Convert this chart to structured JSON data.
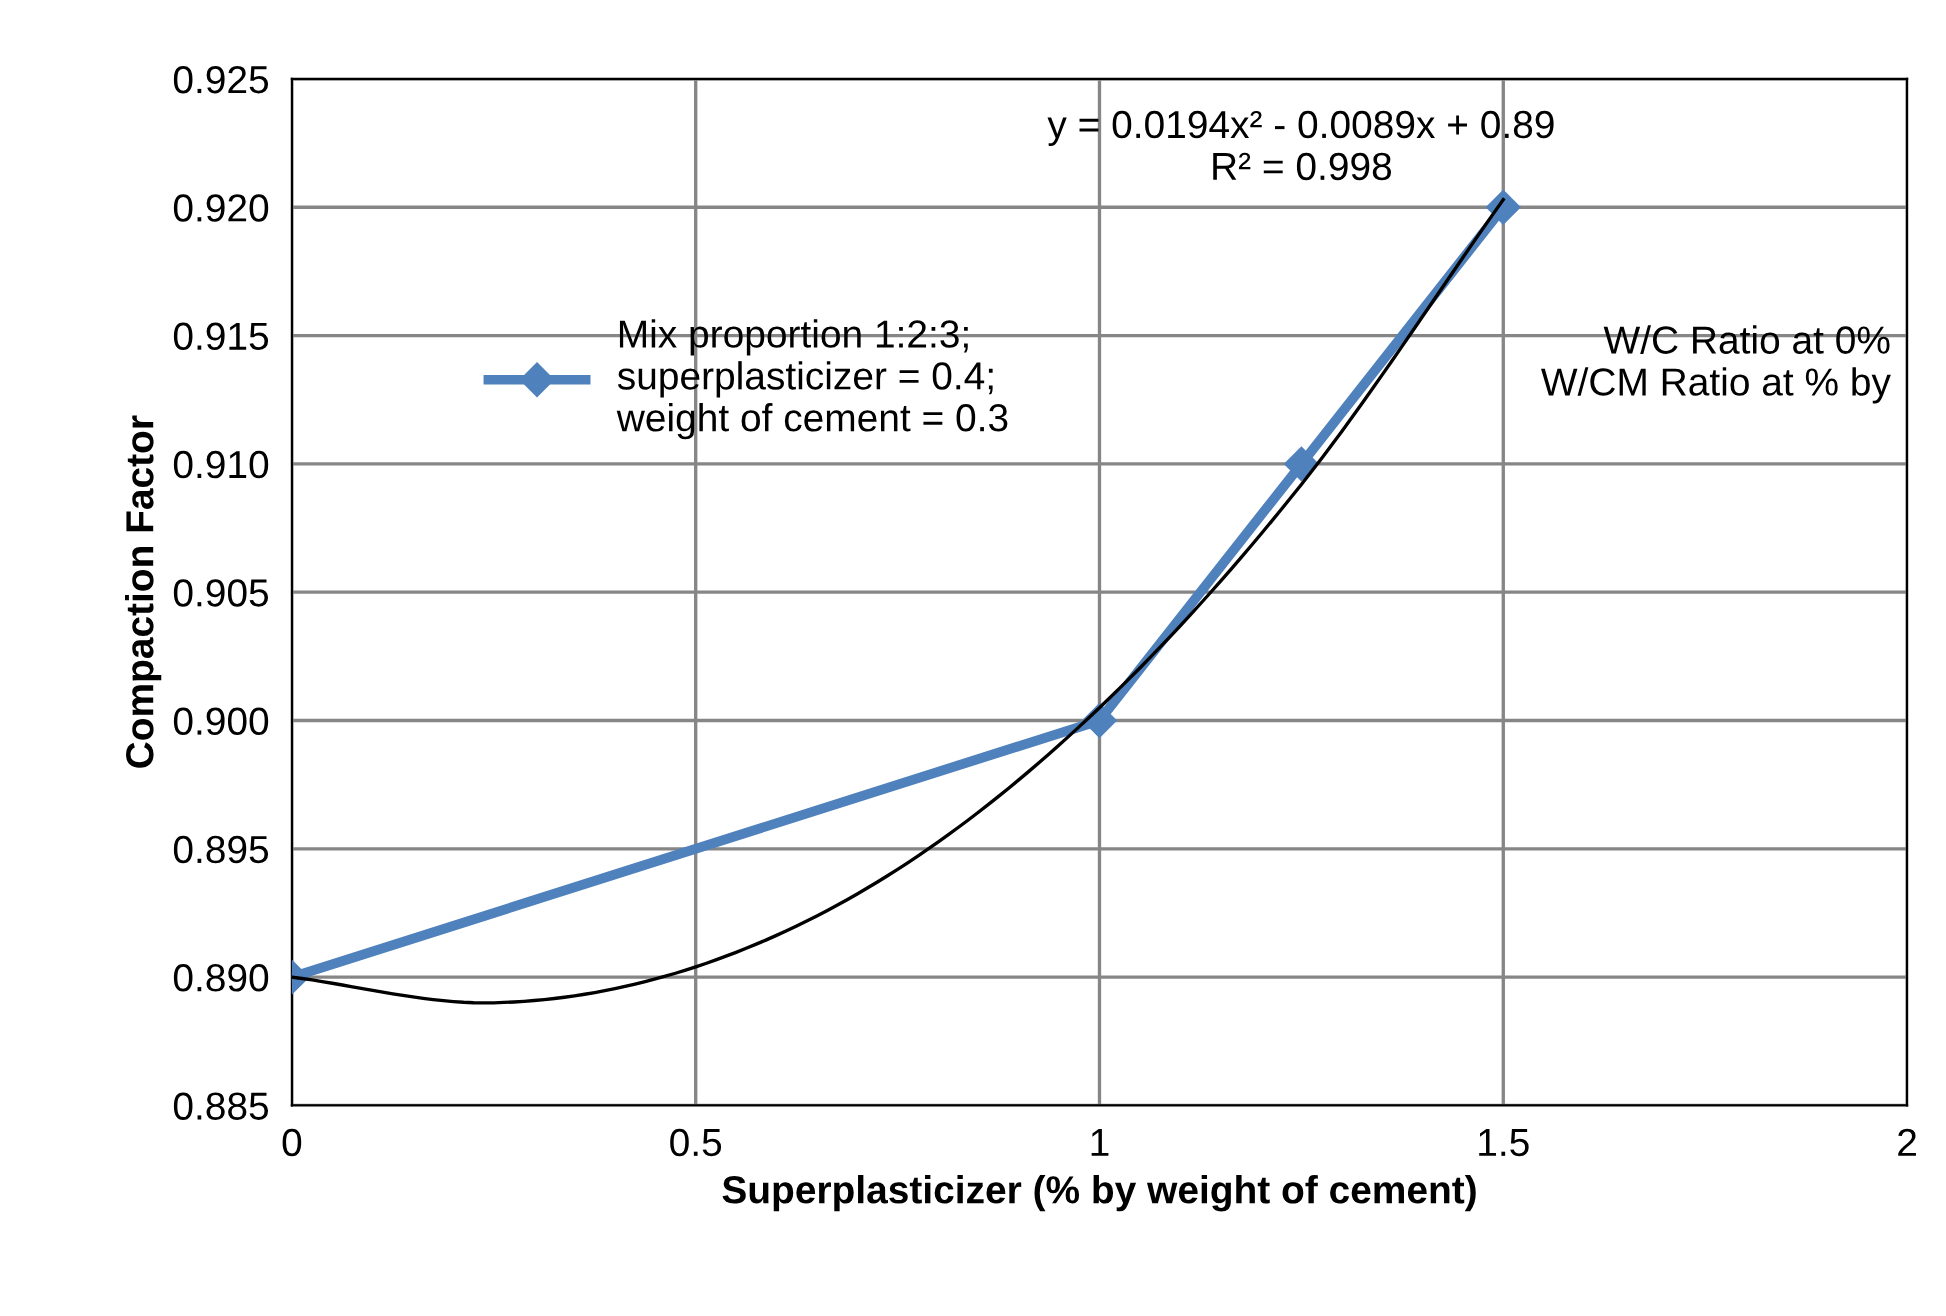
{
  "chart_data": {
    "type": "line",
    "xlabel": "Superplasticizer (% by weight of cement)",
    "ylabel": "Compaction Factor",
    "xlim": [
      0,
      2
    ],
    "xticks": [
      0,
      0.5,
      1,
      1.5,
      2
    ],
    "ylim": [
      0.885,
      0.925
    ],
    "yticks": [
      {
        "value": 0.885,
        "label": "0.885"
      },
      {
        "value": 0.89,
        "label": "0.890"
      },
      {
        "value": 0.895,
        "label": "0.895"
      },
      {
        "value": 0.9,
        "label": "0.900"
      },
      {
        "value": 0.905,
        "label": "0.905"
      },
      {
        "value": 0.91,
        "label": "0.910"
      },
      {
        "value": 0.915,
        "label": "0.915"
      },
      {
        "value": 0.92,
        "label": "0.920"
      },
      {
        "value": 0.925,
        "label": "0.925"
      }
    ],
    "grid": true,
    "legend": "top left",
    "series": [
      {
        "name": "Mix proportion 1:2:3;\nsuperplasticizer = 0.4;\nweight of cement = 0.3",
        "color": "#4f81bd",
        "x": [
          0,
          1,
          1.25,
          1.5
        ],
        "values": [
          0.89,
          0.9,
          0.91,
          0.92
        ],
        "marker": "diamond",
        "line_style": "solid"
      },
      {
        "color": "#000000",
        "x": [
          0,
          0.25,
          0.5,
          0.75,
          1,
          1.25,
          1.5
        ],
        "values": [
          0.89,
          0.889,
          0.8904,
          0.8942,
          0.9005,
          0.9092,
          0.9203
        ],
        "marker": "none",
        "line_style": "solid"
      }
    ],
    "annotations": [
      "y = 0.0194x² - 0.0089x + 0.89\nR² = 0.998",
      "W/C Ratio at 0%\nW/CM Ratio at % by"
    ]
  }
}
